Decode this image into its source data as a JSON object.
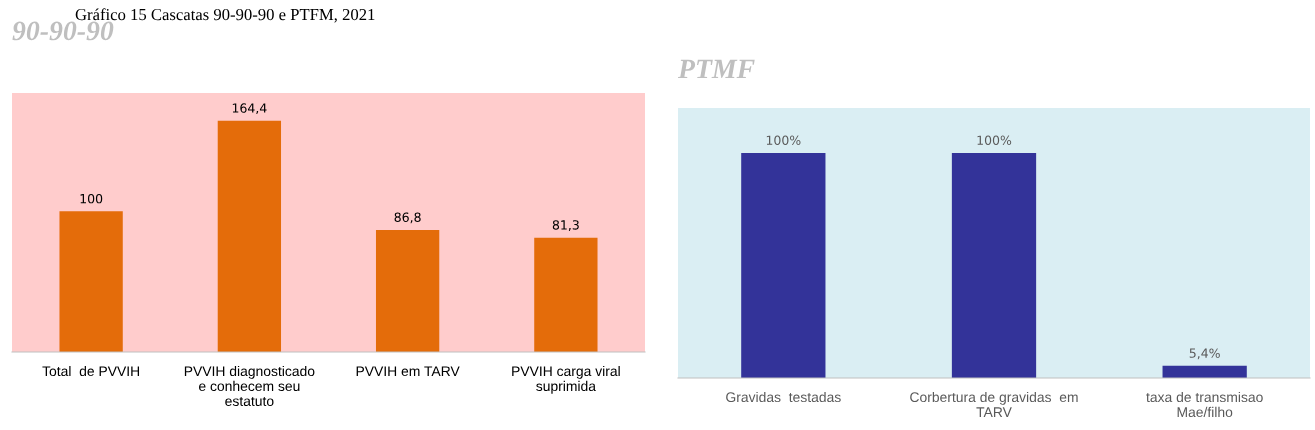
{
  "chart_data": [
    {
      "type": "bar",
      "title": "90-90-90",
      "annotations": [
        "Gráfico 15 Cascatas 90-90-90 e PTFM, 2021"
      ],
      "categories": [
        "Total  de PVVIH",
        "PVVIH diagnosticado\ne conhecem seu\nestatuto",
        "PVVIH em TARV",
        "PVVIH carga viral\nsuprimida"
      ],
      "values": [
        100,
        164.4,
        86.8,
        81.3
      ],
      "value_labels": [
        "100",
        "164,4",
        "86,8",
        "81,3"
      ],
      "color": "#e46c0a"
    },
    {
      "type": "bar",
      "title": "PTMF",
      "categories": [
        "Gravidas  testadas",
        "Corbertura de gravidas  em\nTARV",
        "taxa de transmisao\nMae/filho"
      ],
      "values": [
        100,
        100,
        5.4
      ],
      "value_labels": [
        "100%",
        "100%",
        "5,4%"
      ],
      "color": "#333399"
    }
  ]
}
